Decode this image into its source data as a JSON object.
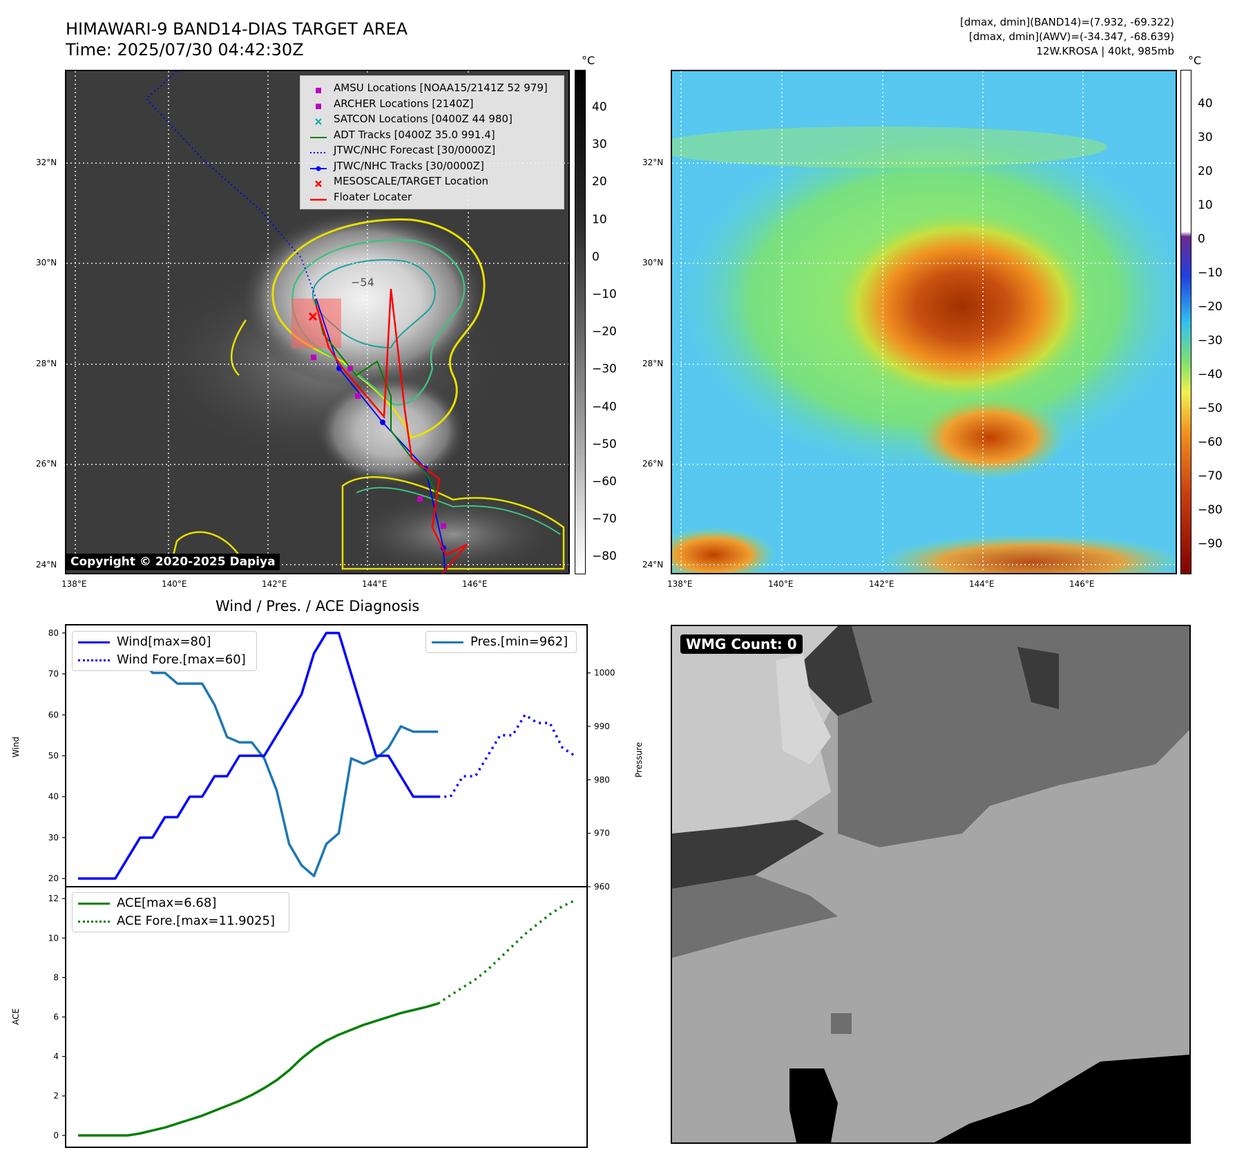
{
  "header": {
    "title_line1": "HIMAWARI-9 BAND14-DIAS TARGET AREA",
    "title_line2": "Time: 2025/07/30 04:42:30Z",
    "info_line1": "[dmax, dmin](BAND14)=(7.932, -69.322)",
    "info_line2": "[dmax, dmin](AWV)=(-34.347, -68.639)",
    "info_line3": "12W.KROSA | 40kt, 985mb"
  },
  "map": {
    "lat_ticks": [
      "32°N",
      "30°N",
      "28°N",
      "26°N",
      "24°N"
    ],
    "lon_ticks": [
      "138°E",
      "140°E",
      "142°E",
      "144°E",
      "146°E"
    ],
    "contour_label": "−54",
    "copyright": "Copyright © 2020-2025 Dapiya",
    "legend": [
      {
        "label": "AMSU Locations [NOAA15/2141Z 52 979]",
        "color": "#c000c0",
        "marker": "square"
      },
      {
        "label": "ARCHER Locations [2140Z]",
        "color": "#c000c0",
        "marker": "square"
      },
      {
        "label": "SATCON Locations [0400Z 44 980]",
        "color": "#00b0b0",
        "marker": "x"
      },
      {
        "label": "ADT Tracks [0400Z 35.0 991.4]",
        "color": "#008000",
        "marker": "line"
      },
      {
        "label": "JTWC/NHC Forecast [30/0000Z]",
        "color": "#0000ff",
        "marker": "dotted"
      },
      {
        "label": "JTWC/NHC Tracks [30/0000Z]",
        "color": "#0000ff",
        "marker": "line-dot"
      },
      {
        "label": "MESOSCALE/TARGET Location",
        "color": "#ff0000",
        "marker": "x"
      },
      {
        "label": "Floater Locater",
        "color": "#ff0000",
        "marker": "line"
      }
    ]
  },
  "colorbar_gray": {
    "unit": "°C",
    "ticks": [
      "40",
      "30",
      "20",
      "10",
      "0",
      "−10",
      "−20",
      "−30",
      "−40",
      "−50",
      "−60",
      "−70",
      "−80"
    ]
  },
  "colorbar_awv": {
    "unit": "°C",
    "ticks": [
      "40",
      "30",
      "20",
      "10",
      "0",
      "−10",
      "−20",
      "−30",
      "−40",
      "−50",
      "−60",
      "−70",
      "−80",
      "−90"
    ]
  },
  "diagnosis": {
    "title": "Wind / Pres. / ACE Diagnosis",
    "wind_label": "Wind",
    "pressure_label": "Pressure",
    "ace_label": "ACE",
    "wind_ticks": [
      "80",
      "70",
      "60",
      "50",
      "40",
      "30",
      "20"
    ],
    "pres_ticks": [
      "1000",
      "990",
      "980",
      "970",
      "960"
    ],
    "ace_ticks": [
      "12",
      "10",
      "8",
      "6",
      "4",
      "2",
      "0"
    ],
    "legend_wind": "Wind[max=80]",
    "legend_wind_fore": "Wind Fore.[max=60]",
    "legend_pres": "Pres.[min=962]",
    "legend_ace": "ACE[max=6.68]",
    "legend_ace_fore": "ACE Fore.[max=11.9025]"
  },
  "wmg": {
    "label": "WMG Count: 0"
  },
  "colors": {
    "wind": "#0000ff",
    "pressure": "#1f77b4",
    "ace": "#008000",
    "floater": "#ff0000",
    "adt": "#008000"
  },
  "chart_data": [
    {
      "type": "line",
      "title": "Wind / Pres. / ACE Diagnosis",
      "ylabel": "Wind",
      "ylim": [
        18,
        82
      ],
      "x": [
        0,
        1,
        2,
        3,
        4,
        5,
        6,
        7,
        8,
        9,
        10,
        11,
        12,
        13,
        14,
        15,
        16,
        17,
        18,
        19,
        20,
        21,
        22,
        23,
        24,
        25,
        26,
        27,
        28,
        29,
        30,
        31,
        32,
        33,
        34,
        35,
        36,
        37,
        38,
        39,
        40
      ],
      "series": [
        {
          "name": "Wind[max=80]",
          "x": [
            0,
            1,
            2,
            3,
            4,
            5,
            6,
            7,
            8,
            9,
            10,
            11,
            12,
            13,
            14,
            15,
            16,
            17,
            18,
            19,
            20,
            21,
            22,
            23,
            24,
            25,
            26,
            27,
            28,
            29
          ],
          "values": [
            20,
            20,
            20,
            20,
            25,
            30,
            30,
            35,
            35,
            40,
            40,
            45,
            45,
            50,
            50,
            50,
            55,
            60,
            65,
            75,
            80,
            80,
            70,
            60,
            50,
            50,
            45,
            40,
            40,
            40
          ]
        },
        {
          "name": "Wind Fore.[max=60]",
          "x": [
            29,
            30,
            31,
            32,
            33,
            34,
            35,
            36,
            37,
            38,
            39,
            40
          ],
          "values": [
            40,
            40,
            45,
            45,
            50,
            55,
            55,
            60,
            58,
            58,
            52,
            50
          ]
        }
      ]
    },
    {
      "type": "line",
      "ylabel": "Pressure",
      "ylim": [
        960,
        1009
      ],
      "series": [
        {
          "name": "Pres.[min=962]",
          "x": [
            0,
            1,
            2,
            3,
            4,
            5,
            6,
            7,
            8,
            9,
            10,
            11,
            12,
            13,
            14,
            15,
            16,
            17,
            18,
            19,
            20,
            21,
            22,
            23,
            24,
            25,
            26,
            27,
            28,
            29
          ],
          "values": [
            1006,
            1006,
            1006,
            1004,
            1004,
            1003,
            1000,
            1000,
            998,
            998,
            998,
            994,
            988,
            987,
            987,
            984,
            978,
            968,
            964,
            962,
            968,
            970,
            984,
            983,
            984,
            986,
            990,
            989,
            989,
            989
          ]
        }
      ]
    },
    {
      "type": "line",
      "ylabel": "ACE",
      "ylim": [
        -0.6,
        12.6
      ],
      "series": [
        {
          "name": "ACE[max=6.68]",
          "x": [
            0,
            1,
            2,
            3,
            4,
            5,
            6,
            7,
            8,
            9,
            10,
            11,
            12,
            13,
            14,
            15,
            16,
            17,
            18,
            19,
            20,
            21,
            22,
            23,
            24,
            25,
            26,
            27,
            28,
            29
          ],
          "values": [
            0,
            0,
            0,
            0,
            0,
            0.1,
            0.25,
            0.4,
            0.6,
            0.8,
            1.0,
            1.25,
            1.5,
            1.75,
            2.05,
            2.4,
            2.8,
            3.3,
            3.9,
            4.4,
            4.8,
            5.1,
            5.35,
            5.6,
            5.8,
            6.0,
            6.2,
            6.35,
            6.5,
            6.68
          ]
        },
        {
          "name": "ACE Fore.[max=11.9025]",
          "x": [
            29,
            30,
            31,
            32,
            33,
            34,
            35,
            36,
            37,
            38,
            39,
            40
          ],
          "values": [
            6.68,
            7.1,
            7.5,
            7.9,
            8.4,
            9.0,
            9.6,
            10.2,
            10.7,
            11.2,
            11.6,
            11.9025
          ]
        }
      ]
    }
  ]
}
